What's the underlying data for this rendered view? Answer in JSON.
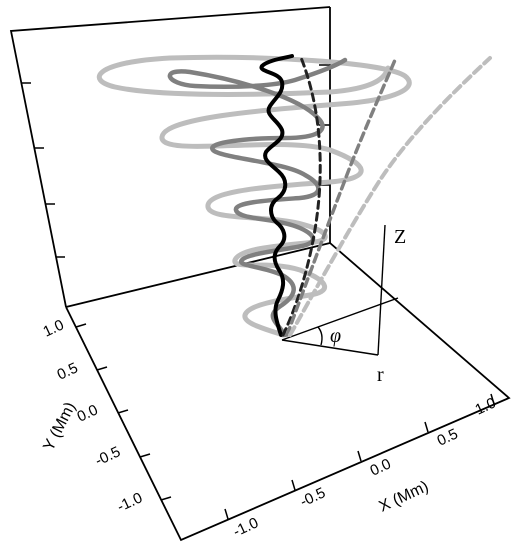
{
  "labels": {
    "x_axis": "X (Mm)",
    "y_axis": "Y (Mm)",
    "z_axis": "Z",
    "r_symbol": "r",
    "phi_symbol": "φ"
  },
  "x_ticks": [
    "-1.0",
    "-0.5",
    "0.0",
    "0.5",
    "1.0"
  ],
  "y_ticks": [
    "1.0",
    "0.5",
    "0.0",
    "-0.5",
    "-1.0"
  ],
  "curves": [
    {
      "id": "outer-helix",
      "color": "#bdbdbd",
      "style": "solid"
    },
    {
      "id": "middle-helix",
      "color": "#808080",
      "style": "solid"
    },
    {
      "id": "inner-helix",
      "color": "#000000",
      "style": "solid"
    },
    {
      "id": "axis-dashed-black",
      "color": "#222222",
      "style": "dashed"
    },
    {
      "id": "axis-dashed-grey",
      "color": "#808080",
      "style": "dashed"
    },
    {
      "id": "cone-dashed-light",
      "color": "#bdbdbd",
      "style": "dashed"
    }
  ]
}
